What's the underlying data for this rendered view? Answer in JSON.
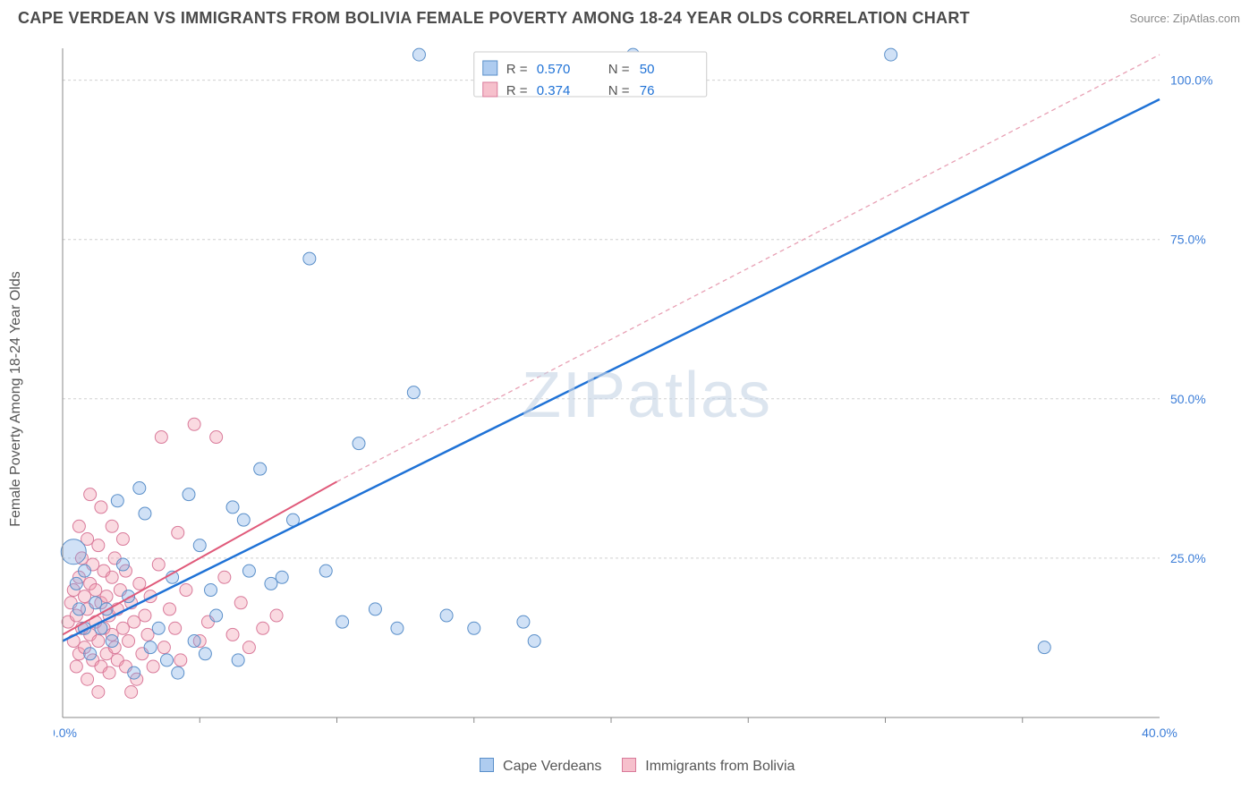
{
  "header": {
    "title": "CAPE VERDEAN VS IMMIGRANTS FROM BOLIVIA FEMALE POVERTY AMONG 18-24 YEAR OLDS CORRELATION CHART",
    "source_prefix": "Source: ",
    "source_name": "ZipAtlas.com"
  },
  "axes": {
    "ylabel": "Female Poverty Among 18-24 Year Olds",
    "xlim": [
      0,
      40
    ],
    "ylim": [
      0,
      105
    ],
    "yticks": [
      25,
      50,
      75,
      100
    ],
    "ytick_labels": [
      "25.0%",
      "50.0%",
      "75.0%",
      "100.0%"
    ],
    "xticks": [
      0,
      40
    ],
    "xtick_labels": [
      "0.0%",
      "40.0%"
    ],
    "x_minor": [
      5,
      10,
      15,
      20,
      25,
      30,
      35
    ]
  },
  "styling": {
    "bg": "#ffffff",
    "grid_color": "#d0d0d0",
    "axis_color": "#888888",
    "blue_fill": "rgba(120,170,230,0.35)",
    "blue_stroke": "#5a8fc9",
    "blue_line": "#1f72d6",
    "pink_fill": "rgba(240,150,170,0.35)",
    "pink_stroke": "#d97a9a",
    "pink_line": "#e05a7a",
    "pink_dash": "#e8a0b4",
    "tick_label_color": "#3b7dd8",
    "title_color": "#4a4a4a",
    "label_color": "#555555",
    "marker_radius": 7,
    "big_marker_radius": 14,
    "title_fontsize": 18,
    "label_fontsize": 16,
    "tick_fontsize": 14,
    "legend_fontsize": 15,
    "watermark_text": "ZIPatlas",
    "watermark_color": "#c6d4e6",
    "watermark_fontsize": 72
  },
  "series": {
    "blue": {
      "name": "Cape Verdeans",
      "R": "0.570",
      "N": "50",
      "reg_line": {
        "x1": 0,
        "y1": 12,
        "x2": 40,
        "y2": 97
      },
      "points": [
        [
          0.4,
          26,
          14
        ],
        [
          0.5,
          21
        ],
        [
          0.6,
          17
        ],
        [
          0.8,
          14
        ],
        [
          0.8,
          23
        ],
        [
          1.0,
          10
        ],
        [
          1.2,
          18
        ],
        [
          1.4,
          14
        ],
        [
          1.6,
          17
        ],
        [
          1.8,
          12
        ],
        [
          2.0,
          34
        ],
        [
          2.2,
          24
        ],
        [
          2.4,
          19
        ],
        [
          2.6,
          7
        ],
        [
          2.8,
          36
        ],
        [
          3.0,
          32
        ],
        [
          3.2,
          11
        ],
        [
          3.5,
          14
        ],
        [
          3.8,
          9
        ],
        [
          4.0,
          22
        ],
        [
          4.2,
          7
        ],
        [
          4.6,
          35
        ],
        [
          4.8,
          12
        ],
        [
          5.0,
          27
        ],
        [
          5.2,
          10
        ],
        [
          5.4,
          20
        ],
        [
          5.6,
          16
        ],
        [
          6.2,
          33
        ],
        [
          6.4,
          9
        ],
        [
          6.6,
          31
        ],
        [
          6.8,
          23
        ],
        [
          7.2,
          39
        ],
        [
          7.6,
          21
        ],
        [
          8.0,
          22
        ],
        [
          8.4,
          31
        ],
        [
          9.0,
          72
        ],
        [
          9.6,
          23
        ],
        [
          10.2,
          15
        ],
        [
          10.8,
          43
        ],
        [
          11.4,
          17
        ],
        [
          12.2,
          14
        ],
        [
          12.8,
          51
        ],
        [
          14.0,
          16
        ],
        [
          15.0,
          14
        ],
        [
          16.8,
          15
        ],
        [
          17.2,
          12
        ],
        [
          20.8,
          104
        ],
        [
          30.2,
          104
        ],
        [
          35.8,
          11
        ],
        [
          13.0,
          104
        ]
      ]
    },
    "pink": {
      "name": "Immigrants from Bolivia",
      "R": "0.374",
      "N": "76",
      "reg_solid": {
        "x1": 0,
        "y1": 13,
        "x2": 10,
        "y2": 37
      },
      "reg_dash": {
        "x1": 10,
        "y1": 37,
        "x2": 40,
        "y2": 104
      },
      "points": [
        [
          0.2,
          15
        ],
        [
          0.3,
          18
        ],
        [
          0.4,
          12
        ],
        [
          0.4,
          20
        ],
        [
          0.5,
          8
        ],
        [
          0.5,
          16
        ],
        [
          0.6,
          22
        ],
        [
          0.6,
          10
        ],
        [
          0.7,
          14
        ],
        [
          0.7,
          25
        ],
        [
          0.8,
          11
        ],
        [
          0.8,
          19
        ],
        [
          0.9,
          6
        ],
        [
          0.9,
          17
        ],
        [
          1.0,
          13
        ],
        [
          1.0,
          21
        ],
        [
          1.1,
          9
        ],
        [
          1.1,
          24
        ],
        [
          1.2,
          15
        ],
        [
          1.2,
          20
        ],
        [
          1.3,
          12
        ],
        [
          1.3,
          27
        ],
        [
          1.4,
          8
        ],
        [
          1.4,
          18
        ],
        [
          1.5,
          23
        ],
        [
          1.5,
          14
        ],
        [
          1.6,
          10
        ],
        [
          1.6,
          19
        ],
        [
          1.7,
          16
        ],
        [
          1.7,
          7
        ],
        [
          1.8,
          22
        ],
        [
          1.8,
          13
        ],
        [
          1.9,
          11
        ],
        [
          1.9,
          25
        ],
        [
          2.0,
          9
        ],
        [
          2.0,
          17
        ],
        [
          2.1,
          20
        ],
        [
          2.2,
          14
        ],
        [
          2.3,
          8
        ],
        [
          2.3,
          23
        ],
        [
          2.4,
          12
        ],
        [
          2.5,
          18
        ],
        [
          2.6,
          15
        ],
        [
          2.7,
          6
        ],
        [
          2.8,
          21
        ],
        [
          2.9,
          10
        ],
        [
          3.0,
          16
        ],
        [
          3.1,
          13
        ],
        [
          3.2,
          19
        ],
        [
          3.3,
          8
        ],
        [
          3.5,
          24
        ],
        [
          3.7,
          11
        ],
        [
          3.9,
          17
        ],
        [
          4.1,
          14
        ],
        [
          4.3,
          9
        ],
        [
          4.5,
          20
        ],
        [
          4.8,
          46
        ],
        [
          5.0,
          12
        ],
        [
          5.3,
          15
        ],
        [
          5.6,
          44
        ],
        [
          5.9,
          22
        ],
        [
          6.2,
          13
        ],
        [
          6.5,
          18
        ],
        [
          6.8,
          11
        ],
        [
          7.3,
          14
        ],
        [
          7.8,
          16
        ],
        [
          1.0,
          35
        ],
        [
          1.4,
          33
        ],
        [
          1.8,
          30
        ],
        [
          2.2,
          28
        ],
        [
          0.6,
          30
        ],
        [
          0.9,
          28
        ],
        [
          3.6,
          44
        ],
        [
          4.2,
          29
        ],
        [
          2.5,
          4
        ],
        [
          1.3,
          4
        ]
      ]
    }
  },
  "legend_top": {
    "rows": [
      {
        "swatch": "blue",
        "r_label": "R =",
        "r_val": "0.570",
        "n_label": "N =",
        "n_val": "50"
      },
      {
        "swatch": "pink",
        "r_label": "R =",
        "r_val": "0.374",
        "n_label": "N =",
        "n_val": "76"
      }
    ]
  },
  "legend_bottom": {
    "items": [
      {
        "swatch": "blue",
        "label": "Cape Verdeans"
      },
      {
        "swatch": "pink",
        "label": "Immigrants from Bolivia"
      }
    ]
  }
}
